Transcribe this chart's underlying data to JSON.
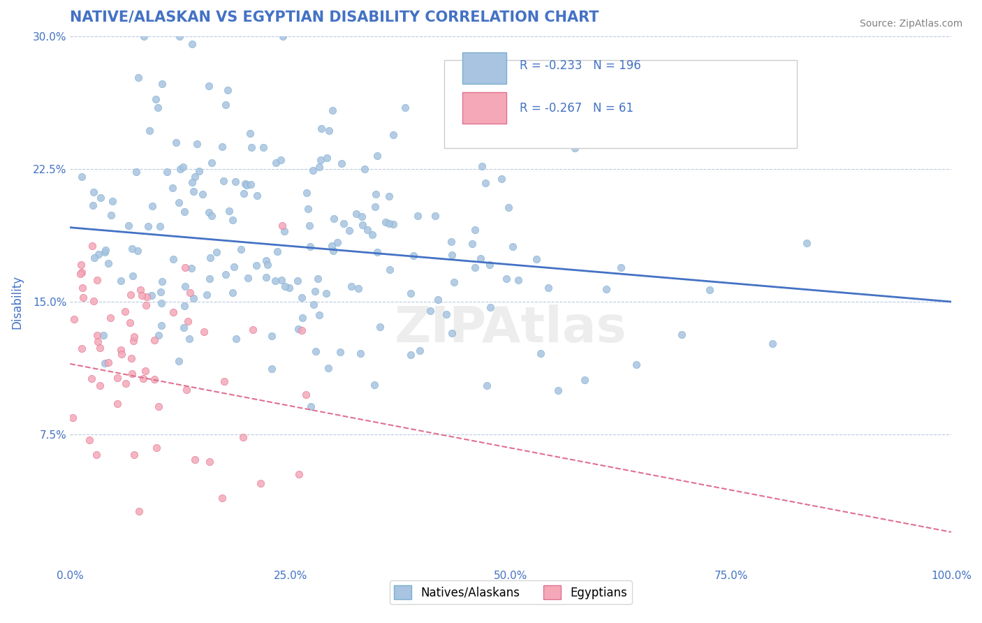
{
  "title": "NATIVE/ALASKAN VS EGYPTIAN DISABILITY CORRELATION CHART",
  "source_text": "Source: ZipAtlas.com",
  "xlabel": "",
  "ylabel": "Disability",
  "watermark": "ZIPAtlas",
  "xlim": [
    0.0,
    1.0
  ],
  "ylim": [
    0.0,
    0.3
  ],
  "yticks": [
    0.0,
    0.075,
    0.15,
    0.225,
    0.3
  ],
  "ytick_labels": [
    "",
    "7.5%",
    "15.0%",
    "22.5%",
    "30.0%"
  ],
  "xticks": [
    0.0,
    0.25,
    0.5,
    0.75,
    1.0
  ],
  "xtick_labels": [
    "0.0%",
    "25.0%",
    "50.0%",
    "75.0%",
    "100.0%"
  ],
  "native_color": "#a8c4e0",
  "native_edge_color": "#7aafd0",
  "egyptian_color": "#f4a8b8",
  "egyptian_edge_color": "#e07090",
  "native_line_color": "#4472c4",
  "egyptian_line_color": "#f4a8b8",
  "native_R": -0.233,
  "native_N": 196,
  "egyptian_R": -0.267,
  "egyptian_N": 61,
  "title_color": "#4472c4",
  "axis_color": "#4472c4",
  "grid_color": "#b8c9e0",
  "background_color": "#ffffff",
  "legend_native_color": "#a8c4e0",
  "legend_egyptian_color": "#f4a8b8",
  "native_seed": 42,
  "egyptian_seed": 123
}
